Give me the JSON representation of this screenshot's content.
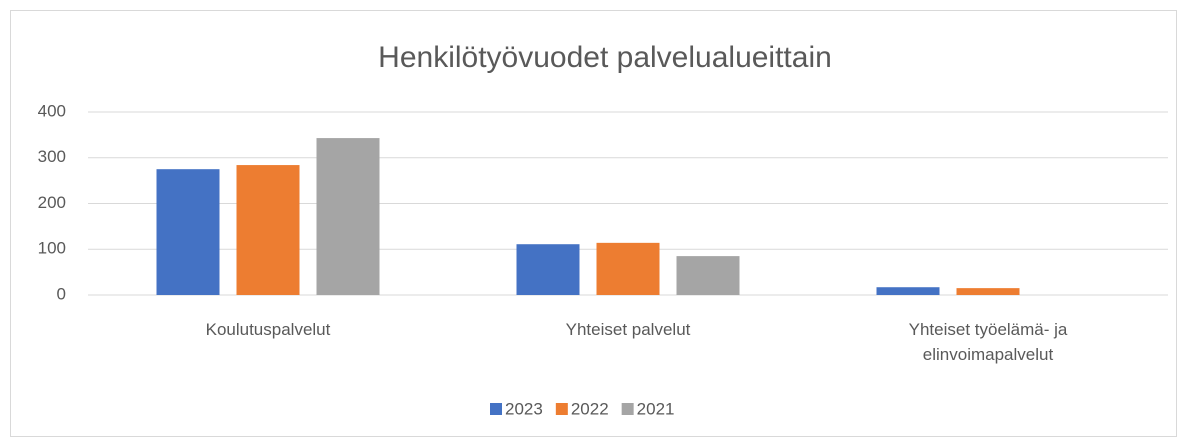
{
  "chart_data": {
    "type": "bar",
    "title": "Henkilötyövuodet palvelualueittain",
    "categories": [
      "Koulutuspalvelut",
      "Yhteiset palvelut",
      "Yhteiset työelämä- ja elinvoimapalvelut"
    ],
    "series": [
      {
        "name": "2023",
        "color": "#4472c4",
        "values": [
          275,
          111,
          17
        ]
      },
      {
        "name": "2022",
        "color": "#ed7d31",
        "values": [
          284,
          114,
          15
        ]
      },
      {
        "name": "2021",
        "color": "#a5a5a5",
        "values": [
          343,
          85,
          0
        ]
      }
    ],
    "ylim": [
      0,
      400
    ],
    "yticks": [
      0,
      100,
      200,
      300,
      400
    ],
    "grid": true,
    "legend": "bottom"
  }
}
